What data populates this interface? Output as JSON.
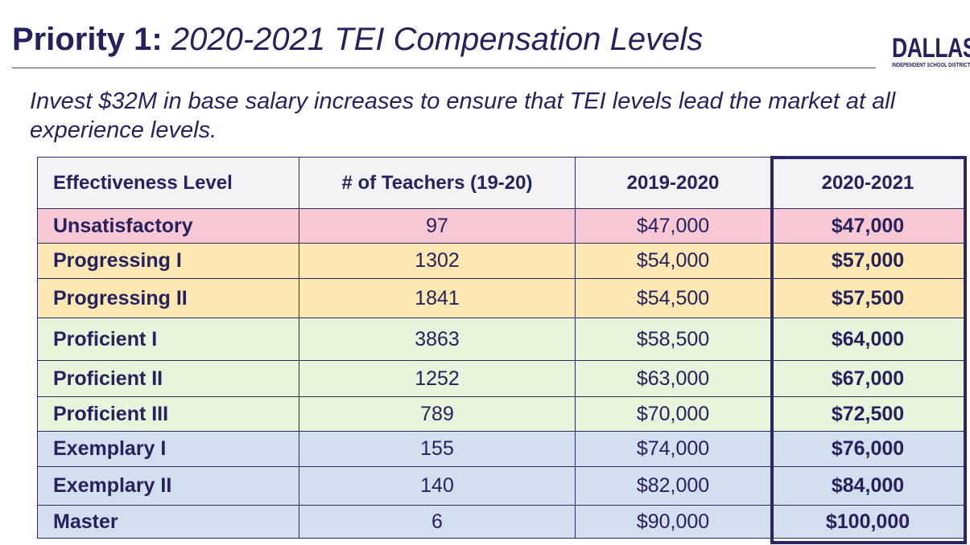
{
  "header": {
    "title_prefix": "Priority 1:",
    "title_main": "2020-2021 TEI Compensation Levels",
    "logo_word": "DALLAS",
    "logo_sub": "INDEPENDENT SCHOOL DISTRICT"
  },
  "subtitle": "Invest $32M in base salary increases to ensure that TEI levels lead the market at all experience levels.",
  "table": {
    "headers": [
      "Effectiveness Level",
      "# of Teachers (19-20)",
      "2019-2020",
      "2020-2021"
    ],
    "rows": [
      {
        "level": "Unsatisfactory",
        "teachers": "97",
        "y2019": "$47,000",
        "y2020": "$47,000",
        "color": "#f8c8d4"
      },
      {
        "level": "Progressing I",
        "teachers": "1302",
        "y2019": "$54,000",
        "y2020": "$57,000",
        "color": "#fde8b4"
      },
      {
        "level": "Progressing II",
        "teachers": "1841",
        "y2019": "$54,500",
        "y2020": "$57,500",
        "color": "#fde8b4"
      },
      {
        "level": "Proficient I",
        "teachers": "3863",
        "y2019": "$58,500",
        "y2020": "$64,000",
        "color": "#e9f4dc"
      },
      {
        "level": "Proficient II",
        "teachers": "1252",
        "y2019": "$63,000",
        "y2020": "$67,000",
        "color": "#e9f4dc"
      },
      {
        "level": "Proficient III",
        "teachers": "789",
        "y2019": "$70,000",
        "y2020": "$72,500",
        "color": "#e9f4dc"
      },
      {
        "level": "Exemplary I",
        "teachers": "155",
        "y2019": "$74,000",
        "y2020": "$76,000",
        "color": "#d3dfee"
      },
      {
        "level": "Exemplary II",
        "teachers": "140",
        "y2019": "$82,000",
        "y2020": "$84,000",
        "color": "#d3dfee"
      },
      {
        "level": "Master",
        "teachers": "6",
        "y2019": "$90,000",
        "y2020": "$100,000",
        "color": "#d3dfee"
      }
    ]
  },
  "colors": {
    "text": "#26225e",
    "header_bg": "#f3f3f5",
    "highlight_border": "#2a2665"
  }
}
